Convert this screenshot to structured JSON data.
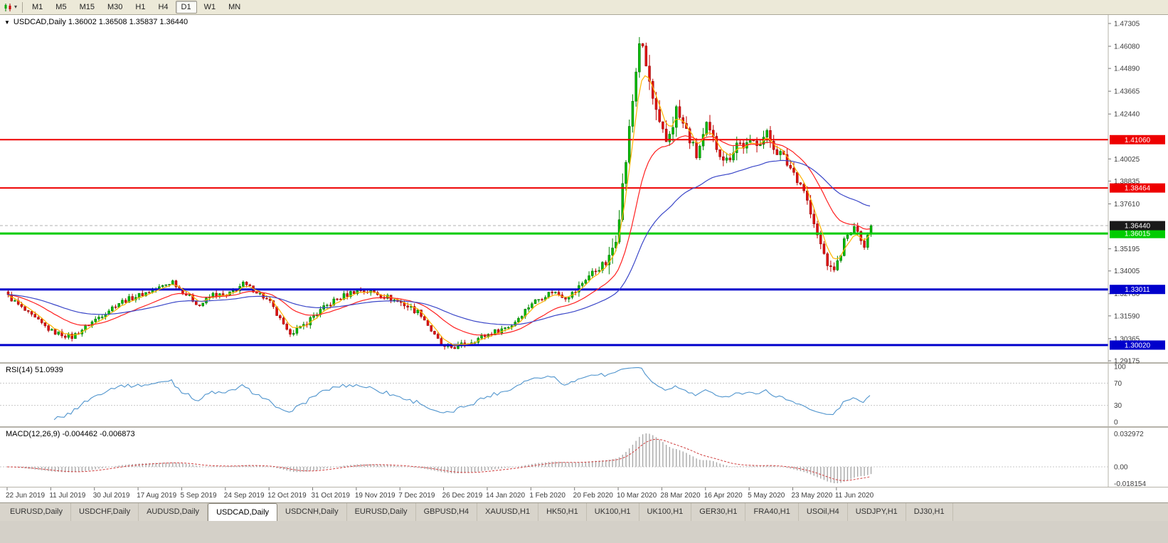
{
  "toolbar": {
    "timeframes": [
      "M1",
      "M5",
      "M15",
      "M30",
      "H1",
      "H4",
      "D1",
      "W1",
      "MN"
    ],
    "active": "D1"
  },
  "chart": {
    "title": "USDCAD,Daily 1.36002 1.36508 1.35837 1.36440",
    "rsi_label": "RSI(14) 51.0939",
    "macd_label": "MACD(12,26,9) -0.004462 -0.006873"
  },
  "chart_data": {
    "type": "candlestick",
    "symbol": "USDCAD",
    "timeframe": "Daily",
    "current": {
      "open": 1.36002,
      "high": 1.36508,
      "low": 1.35837,
      "close": 1.3644
    },
    "y_axis": {
      "max": 1.47305,
      "min": 1.29175,
      "ticks": [
        "1.47305",
        "1.46080",
        "1.44890",
        "1.43665",
        "1.42440",
        "1.40025",
        "1.38835",
        "1.37610",
        "1.35195",
        "1.34005",
        "1.32780",
        "1.31590",
        "1.30365",
        "1.29175"
      ]
    },
    "x_labels": [
      "22 Jun 2019",
      "11 Jul 2019",
      "30 Jul 2019",
      "17 Aug 2019",
      "5 Sep 2019",
      "24 Sep 2019",
      "12 Oct 2019",
      "31 Oct 2019",
      "19 Nov 2019",
      "7 Dec 2019",
      "26 Dec 2019",
      "14 Jan 2020",
      "1 Feb 2020",
      "20 Feb 2020",
      "10 Mar 2020",
      "28 Mar 2020",
      "16 Apr 2020",
      "5 May 2020",
      "23 May 2020",
      "11 Jun 2020"
    ],
    "candles_per_label": 13,
    "candle_count": 258,
    "hlines": [
      {
        "price": 1.4106,
        "label": "1.41060",
        "color": "#ee0000",
        "width": 2
      },
      {
        "price": 1.38464,
        "label": "1.38464",
        "color": "#ee0000",
        "width": 2
      },
      {
        "price": 1.36015,
        "label": "1.36015",
        "color": "#00cc00",
        "width": 3
      },
      {
        "price": 1.33011,
        "label": "1.33011",
        "color": "#0000cc",
        "width": 3
      },
      {
        "price": 1.3002,
        "label": "1.30020",
        "color": "#0000cc",
        "width": 3
      }
    ],
    "current_price": {
      "value": 1.3644,
      "label": "1.36440",
      "badge_color": "#1a1a1a",
      "line_color": "#b0b0b0"
    },
    "moving_averages": [
      {
        "period": 5,
        "color": "#ffb400",
        "name": "fast-ma"
      },
      {
        "period": 20,
        "color": "#ff2020",
        "name": "mid-ma"
      },
      {
        "period": 50,
        "color": "#3a46c8",
        "name": "slow-ma"
      }
    ],
    "candle_colors": {
      "up": "#00bb00",
      "up_stroke": "#006600",
      "wick_up": "#008800",
      "down": "#e01010",
      "down_stroke": "#8b0000",
      "wick_down": "#c00000"
    },
    "rsi": {
      "label": "RSI(14)",
      "value": "51.0939",
      "period": 14,
      "levels": [
        "100",
        "70",
        "30",
        "0"
      ],
      "dashed_levels": [
        70,
        30
      ],
      "line_color": "#4f94cd"
    },
    "macd": {
      "label": "MACD(12,26,9)",
      "values": [
        "-0.004462",
        "-0.006873"
      ],
      "fast": 12,
      "slow": 26,
      "signal": 9,
      "axis_labels": [
        "0.032972",
        "0.00",
        "-0.018154"
      ],
      "hist_color": "#a8a8a8",
      "signal_color": "#d04040"
    },
    "anchors": [
      [
        0,
        1.3265
      ],
      [
        6,
        1.317
      ],
      [
        13,
        1.3075
      ],
      [
        19,
        1.3045
      ],
      [
        26,
        1.314
      ],
      [
        33,
        1.323
      ],
      [
        39,
        1.327
      ],
      [
        45,
        1.331
      ],
      [
        49,
        1.3345
      ],
      [
        52,
        1.329
      ],
      [
        57,
        1.3215
      ],
      [
        61,
        1.3275
      ],
      [
        65,
        1.3265
      ],
      [
        70,
        1.333
      ],
      [
        74,
        1.329
      ],
      [
        78,
        1.323
      ],
      [
        83,
        1.307
      ],
      [
        87,
        1.309
      ],
      [
        91,
        1.316
      ],
      [
        97,
        1.324
      ],
      [
        104,
        1.33
      ],
      [
        110,
        1.328
      ],
      [
        117,
        1.323
      ],
      [
        123,
        1.317
      ],
      [
        127,
        1.305
      ],
      [
        130,
        1.2985
      ],
      [
        134,
        1.2995
      ],
      [
        139,
        1.303
      ],
      [
        143,
        1.306
      ],
      [
        150,
        1.311
      ],
      [
        156,
        1.323
      ],
      [
        162,
        1.329
      ],
      [
        166,
        1.326
      ],
      [
        169,
        1.329
      ],
      [
        172,
        1.336
      ],
      [
        176,
        1.342
      ],
      [
        179,
        1.345
      ],
      [
        181,
        1.36
      ],
      [
        183,
        1.385
      ],
      [
        185,
        1.415
      ],
      [
        187,
        1.448
      ],
      [
        188,
        1.464
      ],
      [
        190,
        1.45
      ],
      [
        192,
        1.432
      ],
      [
        194,
        1.416
      ],
      [
        196,
        1.409
      ],
      [
        199,
        1.426
      ],
      [
        202,
        1.415
      ],
      [
        205,
        1.402
      ],
      [
        208,
        1.417
      ],
      [
        211,
        1.407
      ],
      [
        214,
        1.399
      ],
      [
        217,
        1.409
      ],
      [
        220,
        1.407
      ],
      [
        223,
        1.41
      ],
      [
        226,
        1.413
      ],
      [
        229,
        1.405
      ],
      [
        232,
        1.398
      ],
      [
        234,
        1.393
      ],
      [
        237,
        1.384
      ],
      [
        240,
        1.364
      ],
      [
        243,
        1.349
      ],
      [
        245,
        1.34
      ],
      [
        247,
        1.344
      ],
      [
        249,
        1.356
      ],
      [
        251,
        1.361
      ],
      [
        253,
        1.363
      ],
      [
        255,
        1.353
      ],
      [
        256,
        1.359
      ],
      [
        257,
        1.3644
      ]
    ],
    "volatility": [
      [
        0,
        0.003
      ],
      [
        80,
        0.0036
      ],
      [
        125,
        0.0032
      ],
      [
        170,
        0.0045
      ],
      [
        179,
        0.011
      ],
      [
        200,
        0.0075
      ],
      [
        235,
        0.006
      ],
      [
        248,
        0.0045
      ]
    ]
  },
  "tabs": {
    "items": [
      "EURUSD,Daily",
      "USDCHF,Daily",
      "AUDUSD,Daily",
      "USDCAD,Daily",
      "USDCNH,Daily",
      "EURUSD,Daily",
      "GBPUSD,H4",
      "XAUUSD,H1",
      "HK50,H1",
      "UK100,H1",
      "UK100,H1",
      "GER30,H1",
      "FRA40,H1",
      "USOil,H4",
      "USDJPY,H1",
      "DJ30,H1"
    ],
    "active_index": 3
  }
}
